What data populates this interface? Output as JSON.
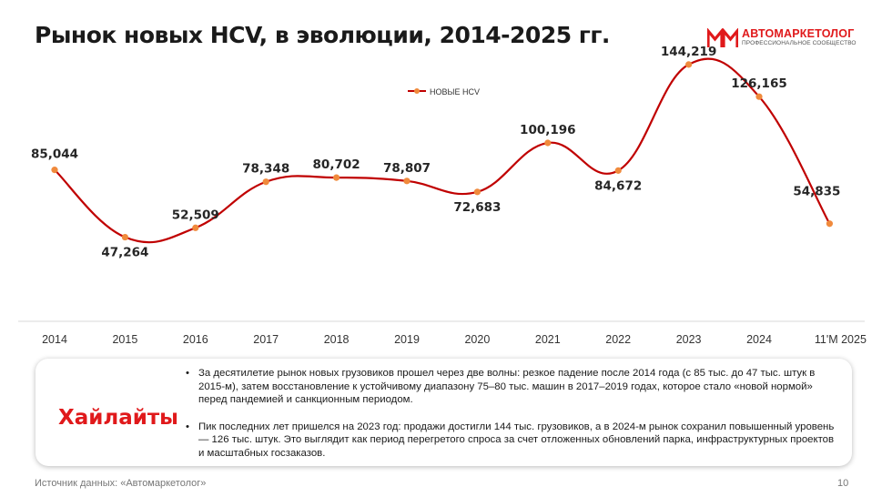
{
  "title": "Рынок новых HCV, в эволюции, 2014-2025 гг.",
  "logo": {
    "name": "АВТОМАРКЕТОЛОГ",
    "tagline": "ПРОФЕССИОНАЛЬНОЕ СООБЩЕСТВО",
    "color": "#e0191b"
  },
  "chart_data": {
    "type": "line",
    "categories": [
      "2014",
      "2015",
      "2016",
      "2017",
      "2018",
      "2019",
      "2020",
      "2021",
      "2022",
      "2023",
      "2024",
      "11'М 2025"
    ],
    "series": [
      {
        "name": "НОВЫЕ HCV",
        "values": [
          85044,
          47264,
          52509,
          78348,
          80702,
          78807,
          72683,
          100196,
          84672,
          144219,
          126165,
          54835
        ],
        "labels": [
          "85,044",
          "47,264",
          "52,509",
          "78,348",
          "80,702",
          "78,807",
          "72,683",
          "100,196",
          "84,672",
          "144,219",
          "126,165",
          "54,835"
        ],
        "line_color": "#c00000",
        "marker_color": "#f08a3c"
      }
    ],
    "smooth": true,
    "legend_position": "top-center",
    "grid": false,
    "y_axis_visible": false,
    "ylim": [
      0,
      160000
    ]
  },
  "highlights": {
    "title": "Хайлайты",
    "bullets": [
      "За десятилетие рынок новых грузовиков прошел через две волны: резкое падение после 2014 года (с 85 тыс. до 47 тыс. штук в 2015-м), затем восстановление к устойчивому диапазону 75–80 тыс. машин в 2017–2019 годах, которое стало «новой нормой» перед пандемией и санкционным периодом.",
      "Пик последних лет пришелся на 2023 год: продажи достигли 144 тыс. грузовиков, а в 2024-м рынок сохранил повышенный уровень — 126 тыс. штук. Это выглядит как период перегретого спроса за счет отложенных обновлений парка, инфраструктурных проектов и масштабных госзаказов."
    ],
    "bullet_glyph": "•",
    "accent_color": "#e0191b"
  },
  "footer": {
    "source": "Источник данных: «Автомаркетолог»",
    "page_number": "10"
  }
}
